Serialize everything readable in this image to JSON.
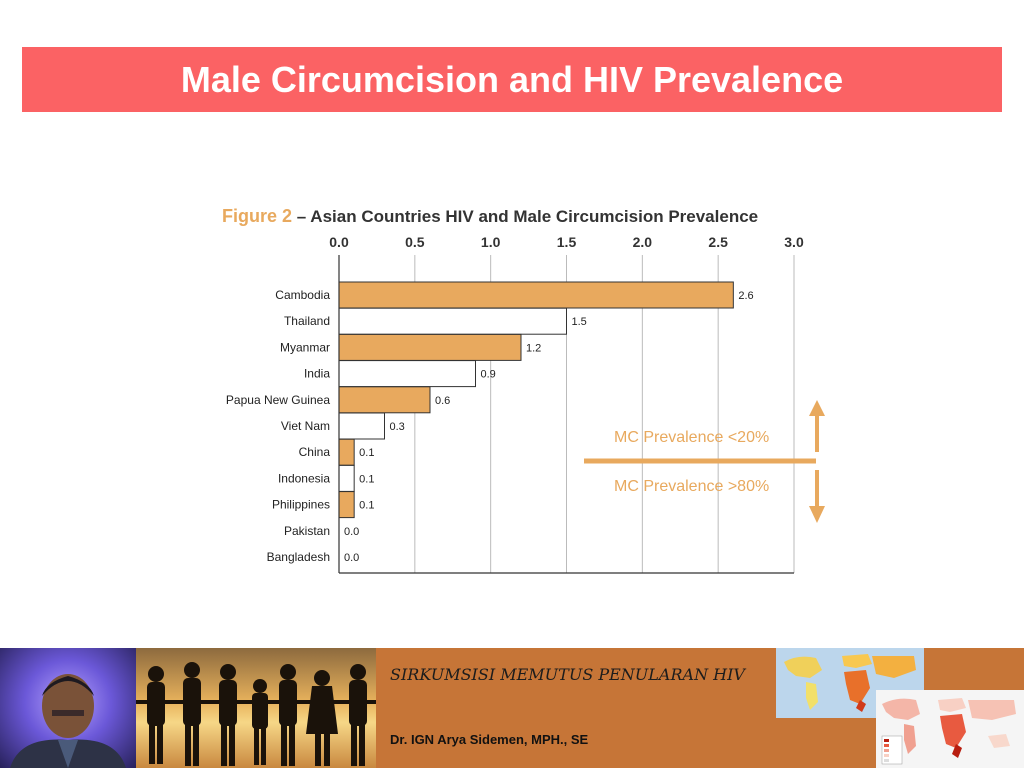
{
  "slide_title": "Male Circumcision and HIV Prevalence",
  "figure": {
    "label": "Figure 2",
    "title": "– Asian Countries HIV and Male Circumcision Prevalence"
  },
  "chart_data": {
    "type": "bar",
    "orientation": "horizontal",
    "xlim": [
      0,
      3.0
    ],
    "xticks": [
      "0.0",
      "0.5",
      "1.0",
      "1.5",
      "2.0",
      "2.5",
      "3.0"
    ],
    "categories": [
      "Cambodia",
      "Thailand",
      "Myanmar",
      "India",
      "Papua New Guinea",
      "Viet Nam",
      "China",
      "Indonesia",
      "Philippines",
      "Pakistan",
      "Bangladesh"
    ],
    "values": [
      2.6,
      1.5,
      1.2,
      0.9,
      0.6,
      0.3,
      0.1,
      0.1,
      0.1,
      0.0,
      0.0
    ],
    "value_labels": [
      "2.6",
      "1.5",
      "1.2",
      "0.9",
      "0.6",
      "0.3",
      "0.1",
      "0.1",
      "0.1",
      "0.0",
      "0.0"
    ],
    "mc_group": [
      "low",
      "high",
      "low",
      "high",
      "low",
      "high",
      "low",
      "high",
      "low",
      "high",
      "high"
    ],
    "colors": {
      "low": "#e8a95e",
      "high": "#ffffff",
      "outline": "#333333",
      "accent": "#e8a95e"
    },
    "grid": true,
    "annotations": {
      "upper": "MC Prevalence <20%",
      "lower": "MC Prevalence >80%"
    }
  },
  "footer": {
    "main_text": "SIRKUMSISI MEMUTUS PENULARAN HIV",
    "author": "Dr. IGN Arya Sidemen, MPH., SE",
    "background": "#c67537"
  }
}
